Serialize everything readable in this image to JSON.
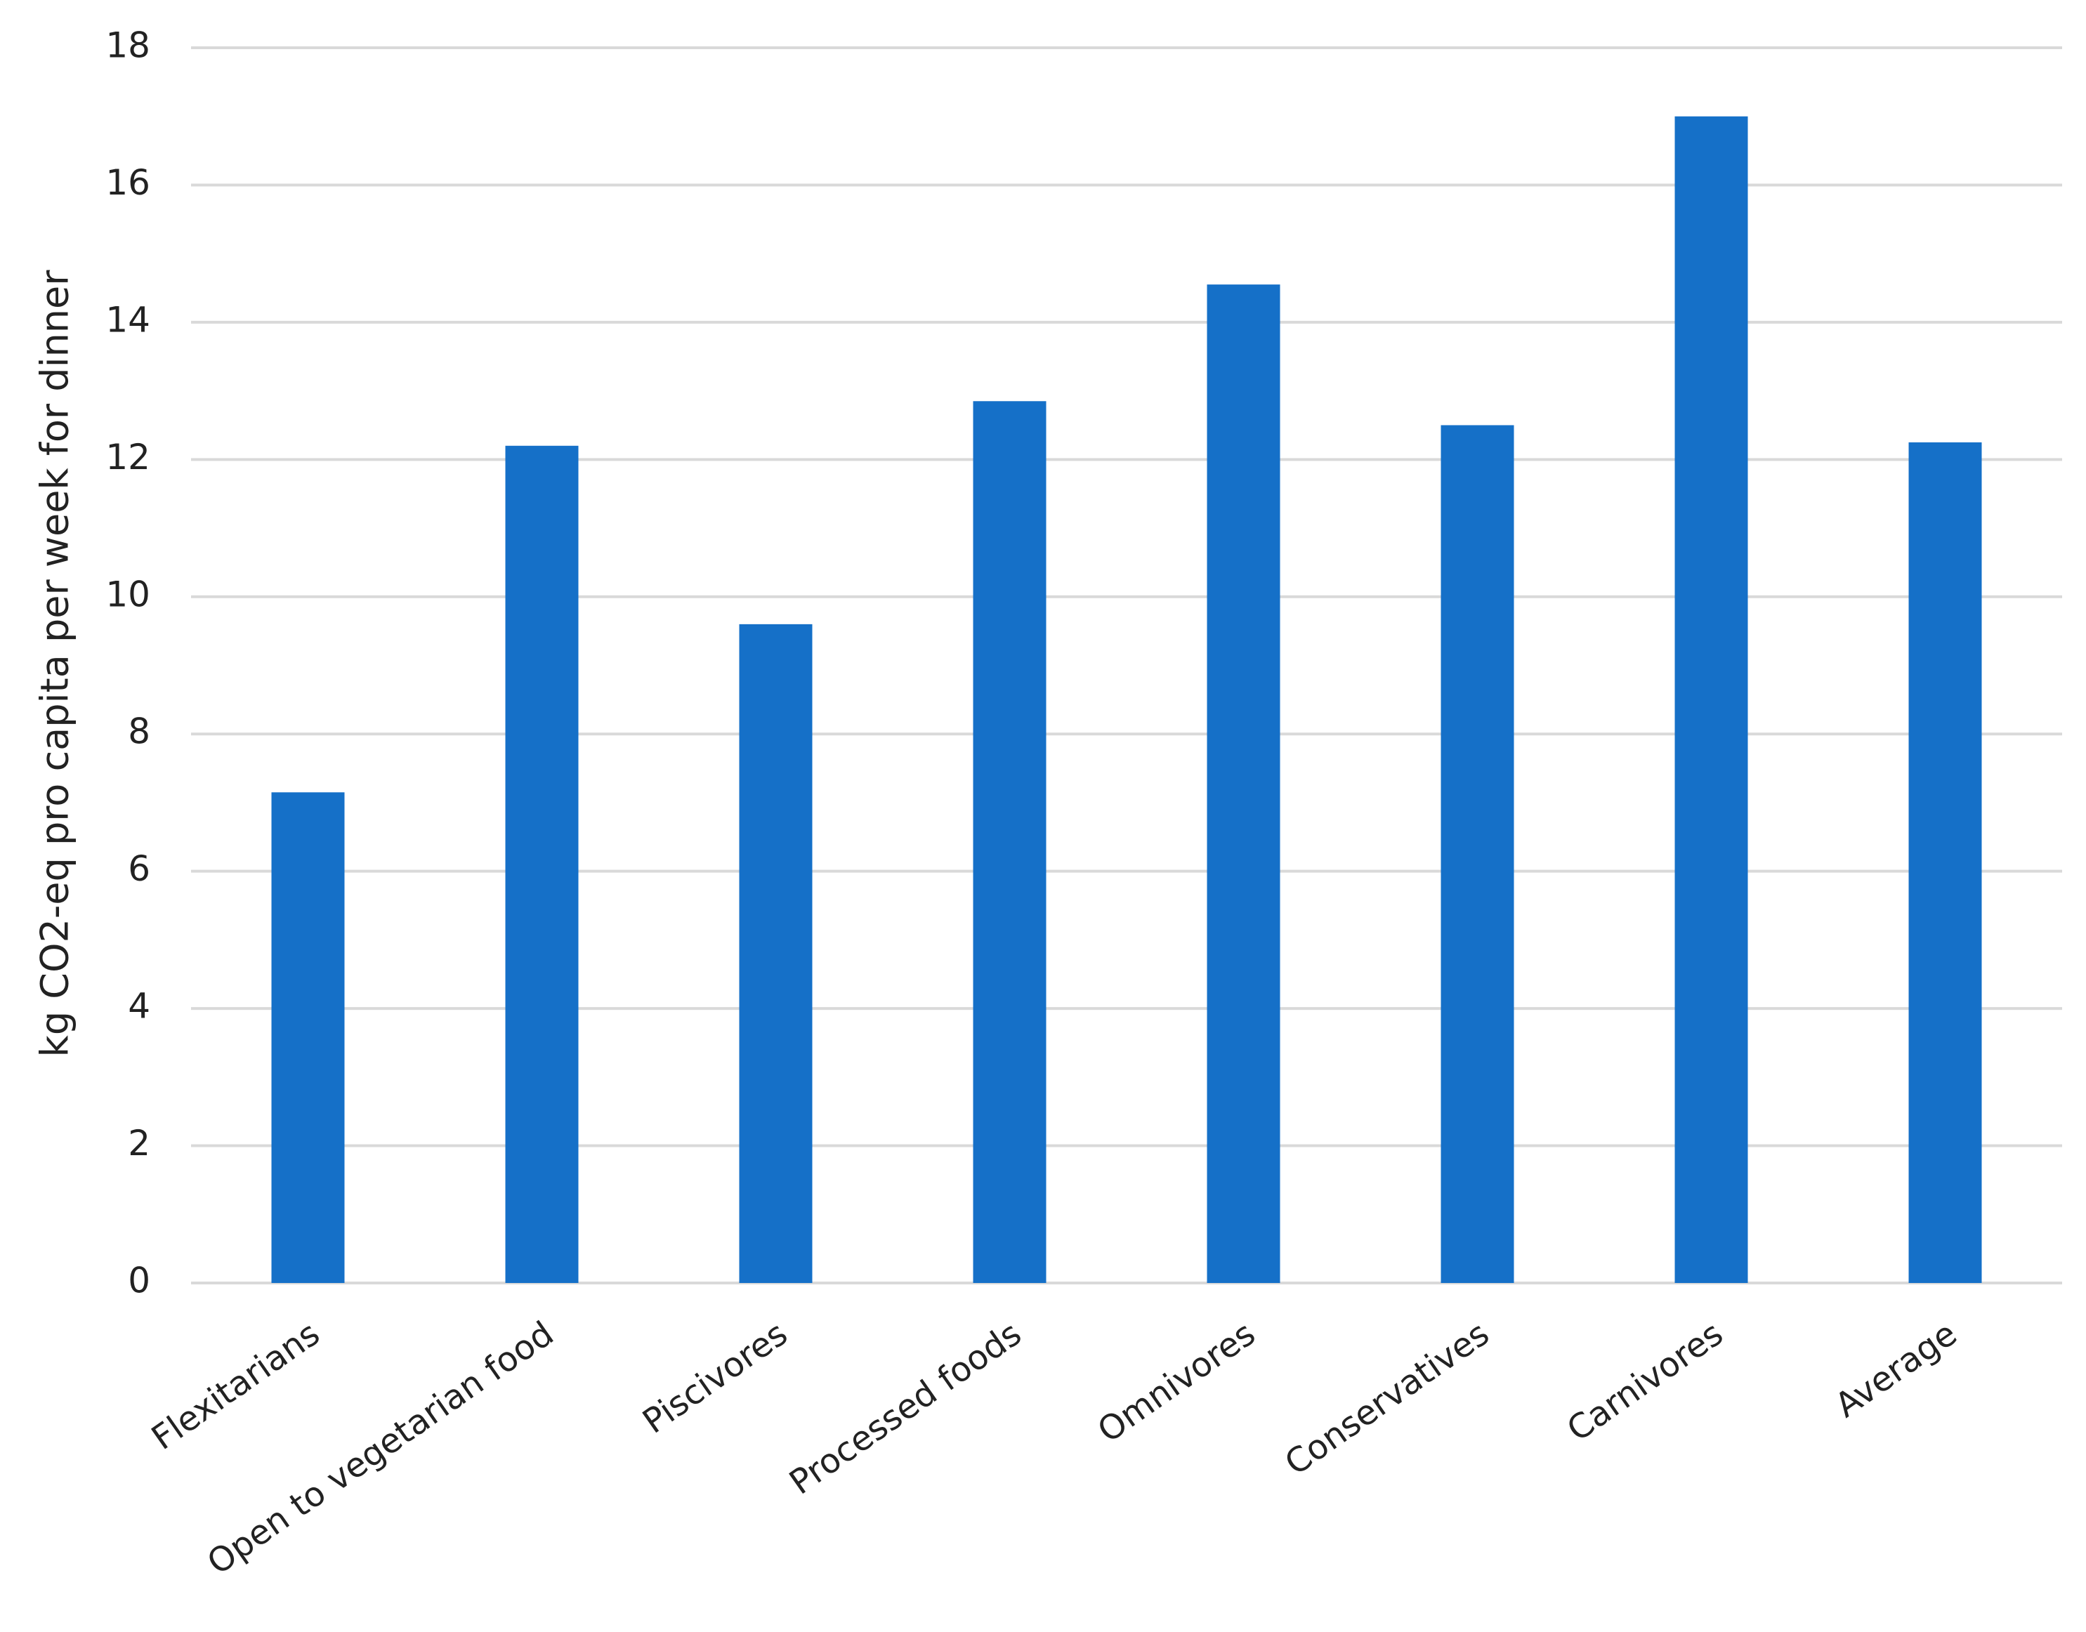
{
  "chart_data": {
    "type": "bar",
    "y_label": "kg CO2-eq pro capita per week for dinner",
    "categories": [
      "Flexitarians",
      "Open to vegetarian food",
      "Piscivores",
      "Processed foods",
      "Omnivores",
      "Conservatives",
      "Carnivores",
      "Average"
    ],
    "values": [
      7.15,
      12.2,
      9.6,
      12.85,
      14.55,
      12.5,
      17.0,
      12.25
    ],
    "color": "#1570c8",
    "ylim": [
      0,
      18
    ],
    "yticks": [
      0,
      2,
      4,
      6,
      8,
      10,
      12,
      14,
      16,
      18
    ],
    "grid": true
  }
}
